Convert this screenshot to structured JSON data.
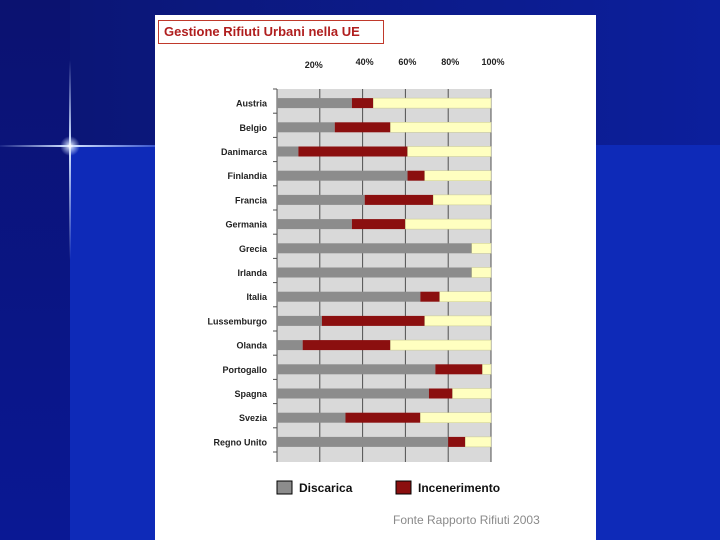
{
  "chart_data": {
    "type": "bar",
    "orientation": "horizontal",
    "stacked": true,
    "title": "Gestione Rifiuti Urbani nella UE",
    "x_ticks": [
      "20%",
      "40%",
      "60%",
      "80%",
      "100%"
    ],
    "xlim": [
      0,
      100
    ],
    "grid": true,
    "legend_position": "bottom",
    "categories": [
      "Austria",
      "Belgio",
      "Danimarca",
      "Finlandia",
      "Francia",
      "Germania",
      "Grecia",
      "Irlanda",
      "Italia",
      "Lussemburgo",
      "Olanda",
      "Portogallo",
      "Spagna",
      "Svezia",
      "Regno Unito"
    ],
    "series": [
      {
        "name": "Discarica",
        "color": "#8c8c8c",
        "values": [
          35,
          27,
          10,
          61,
          41,
          35,
          91,
          91,
          67,
          21,
          12,
          74,
          71,
          32,
          80
        ]
      },
      {
        "name": "Incenerimento",
        "color": "#8b0f0f",
        "values": [
          10,
          26,
          51,
          8,
          32,
          25,
          0,
          0,
          9,
          48,
          41,
          22,
          11,
          35,
          8
        ]
      },
      {
        "name": "",
        "color": "#ffffc0",
        "values": [
          55,
          47,
          39,
          31,
          27,
          40,
          9,
          9,
          24,
          31,
          47,
          4,
          18,
          33,
          12
        ]
      }
    ]
  },
  "source_note": "Fonte Rapporto Rifiuti 2003"
}
